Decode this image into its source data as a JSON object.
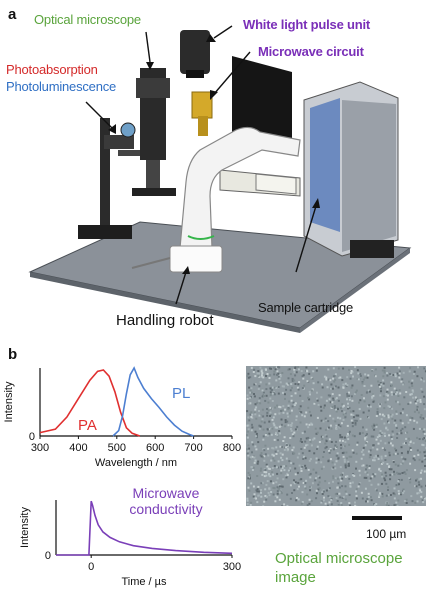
{
  "panel_a": {
    "letter": "a",
    "labels": {
      "optical_microscope": "Optical microscope",
      "white_light_pulse_unit": "White light pulse unit",
      "microwave_circuit": "Microwave circuit",
      "photoabsorption": "Photoabsorption",
      "photoluminescence": "Photoluminescence",
      "sample_cartridge": "Sample cartridge",
      "handling_robot": "Handling robot"
    }
  },
  "panel_b": {
    "letter": "b",
    "micrograph": {
      "scale_bar_label": "100 µm",
      "caption_line1": "Optical microscope",
      "caption_line2": "image"
    }
  },
  "colors": {
    "green": "#5aa43c",
    "purple": "#7a2fb8",
    "red": "#d42a2a",
    "blue": "#2f6fc4",
    "pa_curve": "#e03030",
    "pl_curve": "#4d7fd1",
    "mw_curve": "#7a3fb8"
  },
  "chart_data": [
    {
      "type": "line",
      "xlabel": "Wavelength / nm",
      "ylabel": "Intensity",
      "xlim": [
        300,
        800
      ],
      "ylim": [
        0,
        1
      ],
      "xticks": [
        "300",
        "400",
        "500",
        "600",
        "700",
        "800"
      ],
      "yticks": [
        "0"
      ],
      "series": [
        {
          "name": "PA",
          "x": [
            300,
            340,
            370,
            400,
            430,
            450,
            465,
            480,
            495,
            510,
            525,
            540,
            560
          ],
          "y": [
            0.05,
            0.1,
            0.28,
            0.55,
            0.82,
            0.95,
            0.97,
            0.88,
            0.65,
            0.35,
            0.12,
            0.04,
            0.0
          ]
        },
        {
          "name": "PL",
          "x": [
            490,
            505,
            515,
            525,
            535,
            545,
            555,
            570,
            590,
            610,
            630,
            650,
            670,
            690,
            700
          ],
          "y": [
            0.0,
            0.08,
            0.3,
            0.62,
            0.9,
            1.0,
            0.86,
            0.7,
            0.55,
            0.42,
            0.28,
            0.16,
            0.07,
            0.02,
            0.0
          ]
        }
      ]
    },
    {
      "type": "line",
      "xlabel": "Time / µs",
      "ylabel": "Intensity",
      "xlim": [
        -75,
        300
      ],
      "ylim": [
        0,
        1
      ],
      "xticks": [
        "0",
        "300"
      ],
      "yticks": [
        "0"
      ],
      "series": [
        {
          "name": "Microwave conductivity",
          "x": [
            -75,
            -5,
            0,
            3,
            8,
            15,
            25,
            40,
            60,
            90,
            130,
            180,
            240,
            300
          ],
          "y": [
            0.0,
            0.0,
            0.98,
            0.9,
            0.72,
            0.55,
            0.42,
            0.32,
            0.24,
            0.17,
            0.12,
            0.08,
            0.05,
            0.03
          ]
        }
      ]
    }
  ]
}
